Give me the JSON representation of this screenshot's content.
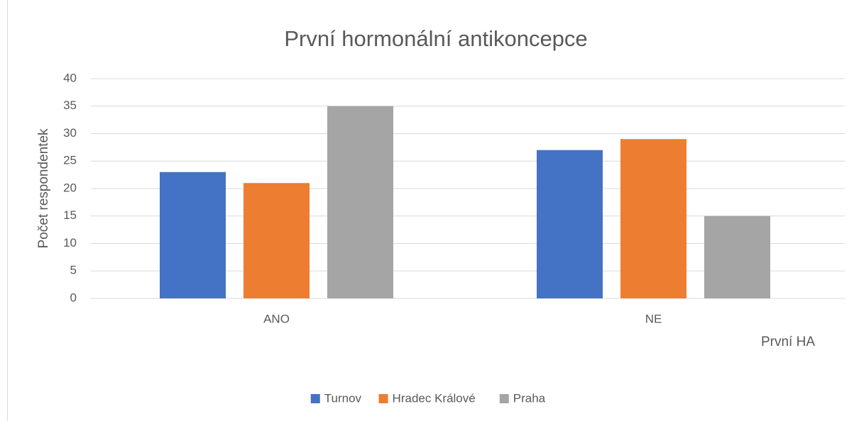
{
  "chart_data": {
    "type": "bar",
    "title": "První hormonální antikoncepce",
    "categories": [
      "ANO",
      "NE"
    ],
    "series": [
      {
        "name": "Turnov",
        "color": "#4472c4",
        "values": [
          23,
          27
        ]
      },
      {
        "name": "Hradec Králové",
        "color": "#ed7d31",
        "values": [
          21,
          29
        ]
      },
      {
        "name": "Praha",
        "color": "#a5a5a5",
        "values": [
          35,
          15
        ]
      }
    ],
    "y_label": "Počet respondentek",
    "x_label": "První HA",
    "ylim": [
      0,
      40
    ],
    "yticks": [
      0,
      5,
      10,
      15,
      20,
      25,
      30,
      35,
      40
    ],
    "grid": true,
    "legend": "bottom"
  }
}
